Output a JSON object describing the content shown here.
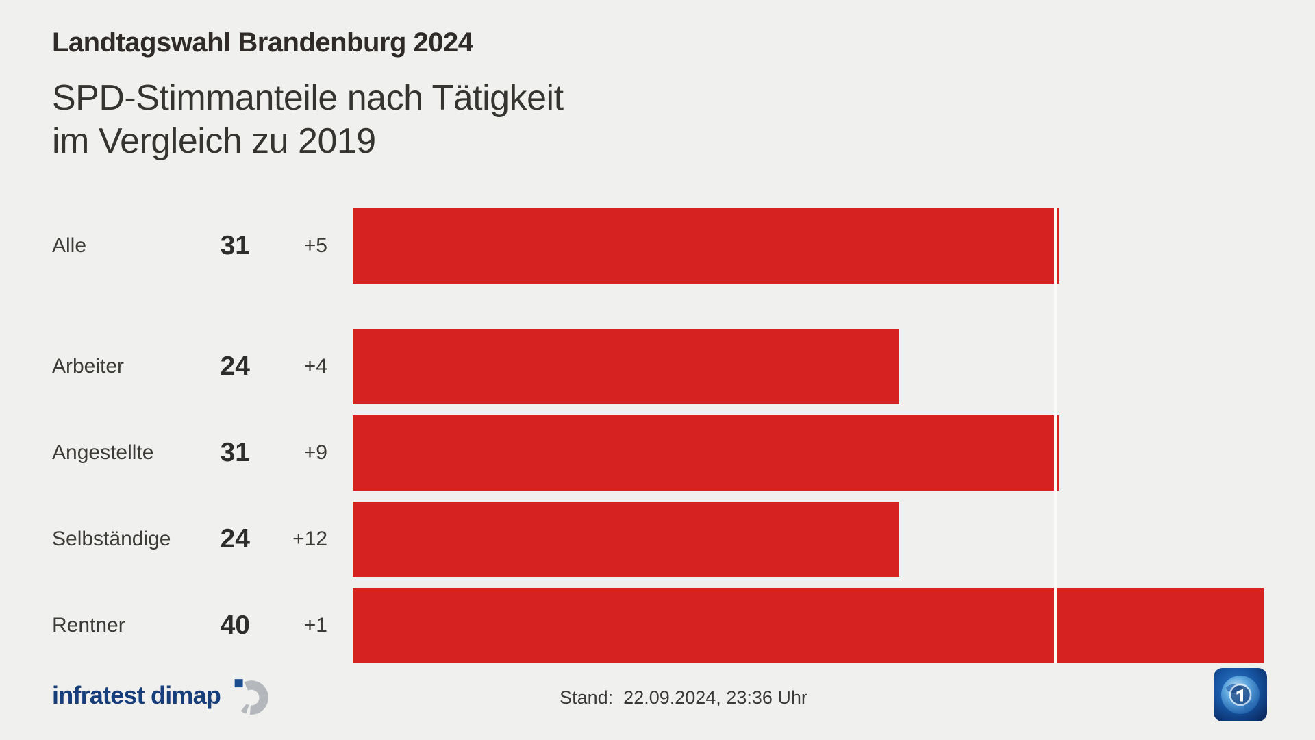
{
  "header": {
    "kicker": "Landtagswahl Brandenburg 2024",
    "title_line1": "SPD-Stimmanteile nach Tätigkeit",
    "title_line2": "im Vergleich zu 2019"
  },
  "chart_data": {
    "type": "bar",
    "orientation": "horizontal",
    "title": "SPD-Stimmanteile nach Tätigkeit im Vergleich zu 2019",
    "categories": [
      "Alle",
      "Arbeiter",
      "Angestellte",
      "Selbständige",
      "Rentner"
    ],
    "values": [
      31,
      24,
      31,
      24,
      40
    ],
    "changes": [
      "+5",
      "+4",
      "+9",
      "+12",
      "+1"
    ],
    "unit": "percent",
    "xlim": [
      0,
      40
    ],
    "reference_line_value": 31,
    "grid": "off",
    "bar_color": "#d62220",
    "reference_line_color": "#fbfbf9"
  },
  "footer": {
    "source": "infratest dimap",
    "stand_label": "Stand:",
    "stand_value": "22.09.2024, 23:36 Uhr"
  },
  "colors": {
    "background": "#f0f0ee",
    "bar_red": "#d62220",
    "text_dark": "#2e2b28",
    "text_gray": "#3d3b38",
    "brand_navy": "#163e7b",
    "logo_gray": "#b4b8bd"
  }
}
